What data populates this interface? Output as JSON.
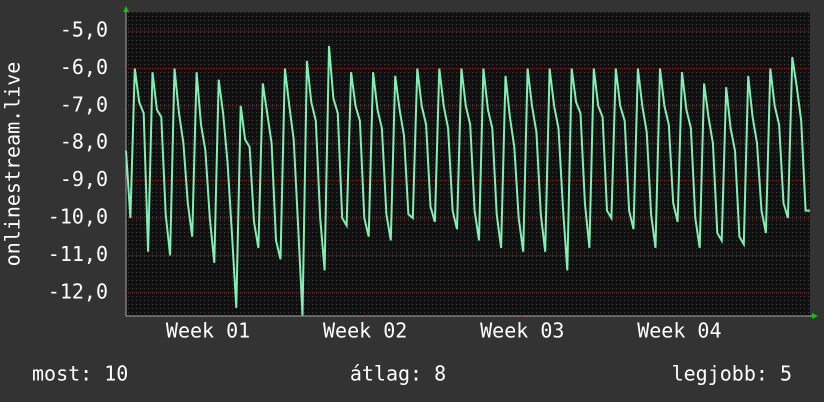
{
  "chart_data": {
    "type": "line",
    "ylabel": "onlinestream.live",
    "color": "#80f0b4",
    "values": [
      -8.2,
      -10.0,
      -6.0,
      -6.9,
      -7.2,
      -10.9,
      -6.1,
      -7.1,
      -7.3,
      -9.9,
      -11.0,
      -6.0,
      -7.2,
      -8.0,
      -9.6,
      -10.5,
      -6.1,
      -7.5,
      -8.2,
      -10.0,
      -11.2,
      -6.3,
      -7.2,
      -8.5,
      -10.4,
      -12.4,
      -7.0,
      -7.9,
      -8.1,
      -10.1,
      -10.8,
      -6.4,
      -7.2,
      -8.0,
      -10.6,
      -11.1,
      -6.0,
      -7.0,
      -7.9,
      -10.2,
      -12.6,
      -5.8,
      -6.9,
      -7.4,
      -10.0,
      -11.4,
      -5.4,
      -6.8,
      -7.2,
      -10.0,
      -10.2,
      -6.1,
      -7.0,
      -7.4,
      -10.0,
      -10.5,
      -6.1,
      -7.1,
      -7.6,
      -9.9,
      -10.6,
      -6.2,
      -7.1,
      -7.8,
      -9.9,
      -10.0,
      -6.0,
      -7.0,
      -7.5,
      -9.7,
      -10.1,
      -6.0,
      -7.0,
      -7.6,
      -9.8,
      -10.3,
      -6.0,
      -7.0,
      -7.5,
      -9.8,
      -10.6,
      -6.0,
      -7.1,
      -7.6,
      -9.9,
      -10.8,
      -6.2,
      -7.3,
      -8.1,
      -10.0,
      -10.9,
      -6.0,
      -7.0,
      -7.7,
      -9.9,
      -10.9,
      -6.0,
      -7.0,
      -7.6,
      -9.7,
      -11.4,
      -6.0,
      -6.9,
      -7.2,
      -9.6,
      -10.8,
      -6.0,
      -7.0,
      -7.3,
      -9.8,
      -10.0,
      -6.0,
      -7.0,
      -7.4,
      -9.8,
      -10.3,
      -6.0,
      -7.0,
      -7.7,
      -9.9,
      -10.8,
      -6.0,
      -7.0,
      -7.5,
      -9.6,
      -10.1,
      -6.1,
      -7.1,
      -7.6,
      -10.0,
      -10.8,
      -6.4,
      -7.3,
      -8.0,
      -10.4,
      -10.6,
      -6.5,
      -7.6,
      -8.2,
      -10.5,
      -10.7,
      -6.2,
      -7.3,
      -8.0,
      -9.8,
      -10.4,
      -6.0,
      -7.0,
      -7.5,
      -9.6,
      -10.0,
      -5.7,
      -6.5,
      -7.4,
      -9.8,
      -9.8
    ],
    "xlim": [
      0,
      155
    ],
    "xticks": [
      {
        "value": 18.6,
        "label": "Week 01"
      },
      {
        "value": 54.2,
        "label": "Week 02"
      },
      {
        "value": 89.8,
        "label": "Week 03"
      },
      {
        "value": 125.4,
        "label": "Week 04"
      }
    ],
    "ylim": [
      -12.62,
      -4.49
    ],
    "yticks": [
      {
        "value": -5,
        "label": "-5,0"
      },
      {
        "value": -6,
        "label": "-6,0"
      },
      {
        "value": -7,
        "label": "-7,0"
      },
      {
        "value": -8,
        "label": "-8,0"
      },
      {
        "value": -9,
        "label": "-9,0"
      },
      {
        "value": -10,
        "label": "-10,0"
      },
      {
        "value": -11,
        "label": "-11,0"
      },
      {
        "value": -12,
        "label": "-12,0"
      }
    ],
    "grid": true,
    "stats": [
      "most: 10",
      "átlag: 8",
      "legjobb: 5"
    ]
  }
}
